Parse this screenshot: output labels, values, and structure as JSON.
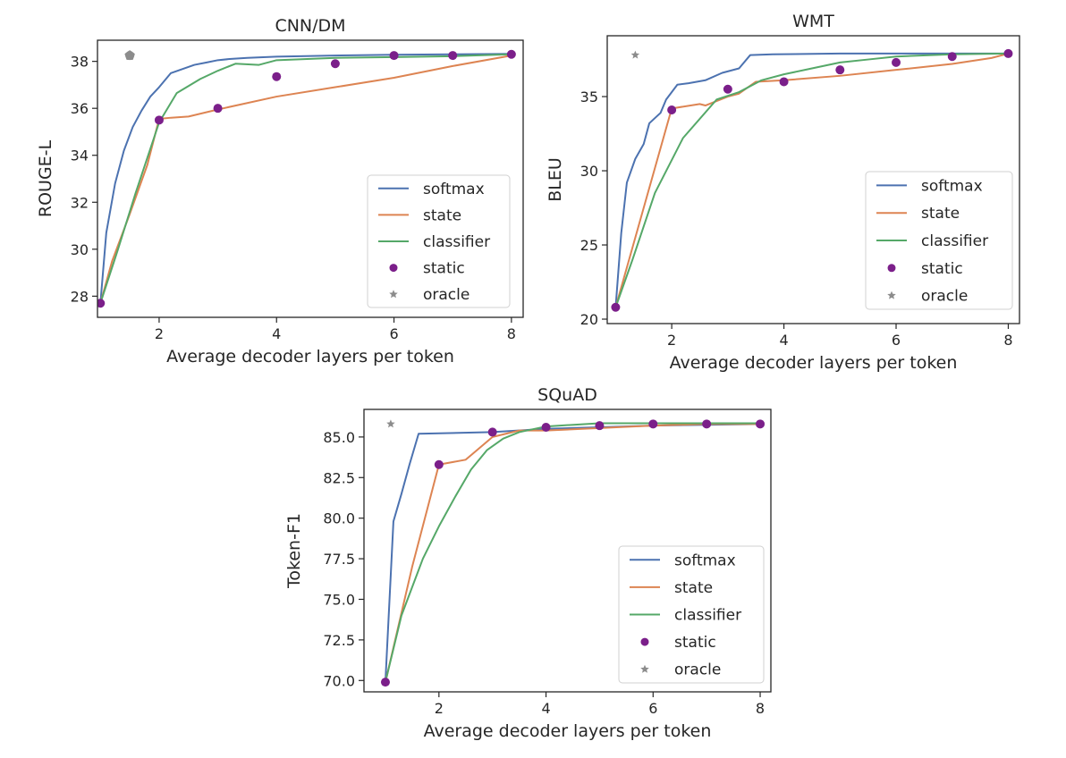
{
  "figure": {
    "description_labels": {
      "softmax_color": "#4c72b0",
      "state_color": "#dd8452",
      "classifier_color": "#55a868",
      "static_color": "#7b1f8a",
      "oracle_color": "#8c8c8c"
    }
  },
  "chart_data": [
    {
      "id": "cnndm",
      "type": "line",
      "title": "CNN/DM",
      "xlabel": "Average decoder layers per token",
      "ylabel": "ROUGE-L",
      "xlim": [
        0.95,
        8.2
      ],
      "ylim": [
        27.1,
        38.9
      ],
      "xticks": [
        2,
        4,
        6,
        8
      ],
      "xtick_labels": [
        "2",
        "4",
        "6",
        "8"
      ],
      "yticks": [
        28,
        30,
        32,
        34,
        36,
        38
      ],
      "ytick_labels": [
        "28",
        "30",
        "32",
        "34",
        "36",
        "38"
      ],
      "legend": [
        "softmax",
        "state",
        "classifier",
        "static",
        "oracle"
      ],
      "series": [
        {
          "name": "softmax",
          "kind": "line",
          "x": [
            1.0,
            1.1,
            1.25,
            1.4,
            1.55,
            1.7,
            1.85,
            2.0,
            2.2,
            2.6,
            2.8,
            3.0,
            3.2,
            3.5,
            4.0,
            5.0,
            6.0,
            7.0,
            8.0
          ],
          "y": [
            27.7,
            30.7,
            32.8,
            34.2,
            35.2,
            35.9,
            36.5,
            36.9,
            37.5,
            37.85,
            37.95,
            38.05,
            38.1,
            38.15,
            38.2,
            38.25,
            38.28,
            38.3,
            38.32
          ]
        },
        {
          "name": "state",
          "kind": "line",
          "x": [
            1.0,
            1.2,
            1.5,
            1.8,
            2.0,
            2.2,
            2.5,
            3.0,
            4.0,
            5.0,
            6.0,
            7.0,
            8.0
          ],
          "y": [
            27.7,
            29.5,
            31.5,
            33.6,
            35.55,
            35.6,
            35.65,
            35.95,
            36.5,
            36.9,
            37.3,
            37.8,
            38.25
          ]
        },
        {
          "name": "classifier",
          "kind": "line",
          "x": [
            1.0,
            1.3,
            1.6,
            2.0,
            2.3,
            2.7,
            3.0,
            3.3,
            3.7,
            4.0,
            5.0,
            6.0,
            7.0,
            8.0
          ],
          "y": [
            27.7,
            30.0,
            32.4,
            35.4,
            36.65,
            37.25,
            37.6,
            37.9,
            37.85,
            38.05,
            38.15,
            38.18,
            38.22,
            38.3
          ]
        },
        {
          "name": "static",
          "kind": "scatter",
          "x": [
            1,
            2,
            3,
            4,
            5,
            6,
            7,
            8
          ],
          "y": [
            27.7,
            35.5,
            36.0,
            37.35,
            37.9,
            38.25,
            38.25,
            38.3
          ]
        },
        {
          "name": "oracle",
          "kind": "scatter",
          "x": [
            1.5
          ],
          "y": [
            38.25
          ]
        }
      ]
    },
    {
      "id": "wmt",
      "type": "line",
      "title": "WMT",
      "xlabel": "Average decoder layers per token",
      "ylabel": "BLEU",
      "xlim": [
        0.85,
        8.2
      ],
      "ylim": [
        19.7,
        39.1
      ],
      "xticks": [
        2,
        4,
        6,
        8
      ],
      "xtick_labels": [
        "2",
        "4",
        "6",
        "8"
      ],
      "yticks": [
        20,
        25,
        30,
        35
      ],
      "ytick_labels": [
        "20",
        "25",
        "30",
        "35"
      ],
      "legend": [
        "softmax",
        "state",
        "classifier",
        "static",
        "oracle"
      ],
      "series": [
        {
          "name": "softmax",
          "kind": "line",
          "x": [
            1.0,
            1.1,
            1.2,
            1.35,
            1.5,
            1.6,
            1.8,
            1.9,
            2.1,
            2.3,
            2.6,
            2.9,
            3.2,
            3.4,
            3.8,
            5.0,
            8.0
          ],
          "y": [
            20.8,
            25.8,
            29.2,
            30.8,
            31.8,
            33.2,
            33.9,
            34.8,
            35.8,
            35.9,
            36.1,
            36.6,
            36.9,
            37.8,
            37.85,
            37.9,
            37.9
          ]
        },
        {
          "name": "state",
          "kind": "line",
          "x": [
            1.0,
            1.5,
            2.0,
            2.5,
            2.6,
            3.0,
            3.2,
            3.5,
            4.0,
            5.0,
            6.0,
            7.0,
            7.7,
            8.0
          ],
          "y": [
            20.8,
            27.5,
            34.2,
            34.5,
            34.4,
            35.0,
            35.2,
            36.0,
            36.1,
            36.4,
            36.8,
            37.2,
            37.6,
            37.9
          ]
        },
        {
          "name": "classifier",
          "kind": "line",
          "x": [
            1.0,
            1.3,
            1.7,
            2.2,
            2.8,
            3.2,
            3.6,
            4.0,
            4.5,
            5.0,
            5.5,
            6.0,
            7.0,
            8.0
          ],
          "y": [
            20.8,
            24.0,
            28.5,
            32.2,
            34.8,
            35.3,
            36.1,
            36.5,
            36.9,
            37.3,
            37.5,
            37.7,
            37.85,
            37.9
          ]
        },
        {
          "name": "static",
          "kind": "scatter",
          "x": [
            1,
            2,
            3,
            4,
            5,
            6,
            7,
            8
          ],
          "y": [
            20.8,
            34.1,
            35.5,
            36.0,
            36.8,
            37.3,
            37.7,
            37.9
          ]
        },
        {
          "name": "oracle",
          "kind": "scatter",
          "x": [
            1.35
          ],
          "y": [
            37.8
          ]
        }
      ]
    },
    {
      "id": "squad",
      "type": "line",
      "title": "SQuAD",
      "xlabel": "Average decoder layers per token",
      "ylabel": "Token-F1",
      "xlim": [
        0.6,
        8.2
      ],
      "ylim": [
        69.3,
        86.7
      ],
      "xticks": [
        2,
        4,
        6,
        8
      ],
      "xtick_labels": [
        "2",
        "4",
        "6",
        "8"
      ],
      "yticks": [
        70.0,
        72.5,
        75.0,
        77.5,
        80.0,
        82.5,
        85.0
      ],
      "ytick_labels": [
        "70.0",
        "72.5",
        "75.0",
        "77.5",
        "80.0",
        "82.5",
        "85.0"
      ],
      "legend": [
        "softmax",
        "state",
        "classifier",
        "static",
        "oracle"
      ],
      "series": [
        {
          "name": "softmax",
          "kind": "line",
          "x": [
            1.0,
            1.15,
            1.3,
            1.45,
            1.62,
            3.0,
            4.0,
            5.0,
            6.0,
            7.0,
            8.0
          ],
          "y": [
            69.9,
            79.8,
            81.5,
            83.3,
            85.2,
            85.3,
            85.5,
            85.6,
            85.7,
            85.75,
            85.8
          ]
        },
        {
          "name": "state",
          "kind": "line",
          "x": [
            1.0,
            1.5,
            2.0,
            2.5,
            3.0,
            3.5,
            4.0,
            5.0,
            6.0,
            7.0,
            8.0
          ],
          "y": [
            69.9,
            77.0,
            83.3,
            83.6,
            85.0,
            85.4,
            85.4,
            85.55,
            85.7,
            85.8,
            85.8
          ]
        },
        {
          "name": "classifier",
          "kind": "line",
          "x": [
            1.0,
            1.3,
            1.7,
            2.0,
            2.3,
            2.6,
            2.9,
            3.2,
            3.5,
            4.0,
            5.0,
            6.0,
            7.0,
            8.0
          ],
          "y": [
            69.9,
            74.0,
            77.5,
            79.5,
            81.3,
            83.0,
            84.2,
            84.9,
            85.3,
            85.65,
            85.85,
            85.85,
            85.85,
            85.85
          ]
        },
        {
          "name": "static",
          "kind": "scatter",
          "x": [
            1,
            2,
            3,
            4,
            5,
            6,
            7,
            8
          ],
          "y": [
            69.9,
            83.3,
            85.3,
            85.6,
            85.7,
            85.8,
            85.8,
            85.8
          ]
        },
        {
          "name": "oracle",
          "kind": "scatter",
          "x": [
            1.1
          ],
          "y": [
            85.8
          ]
        }
      ]
    }
  ]
}
